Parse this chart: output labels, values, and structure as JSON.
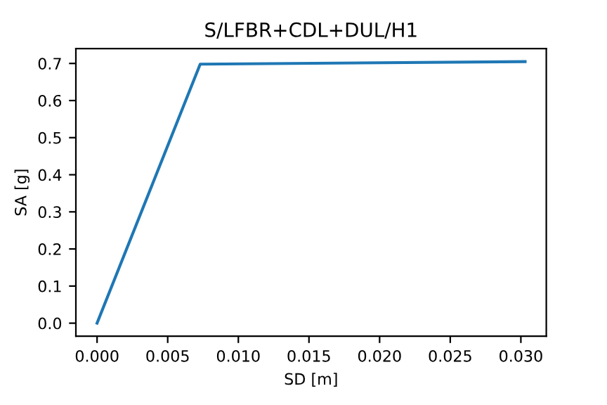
{
  "chart_data": {
    "type": "line",
    "title": "S/LFBR+CDL+DUL/H1",
    "xlabel": "SD [m]",
    "ylabel": "SA [g]",
    "x": [
      0.0,
      0.0073,
      0.0303
    ],
    "series": [
      {
        "color": "#1f77b4",
        "values": [
          0.0,
          0.698,
          0.705
        ]
      }
    ],
    "xlim": [
      -0.0015,
      0.0318
    ],
    "ylim": [
      -0.035,
      0.74
    ],
    "xticks": [
      {
        "value": 0,
        "label": "0.000"
      },
      {
        "value": 0.005,
        "label": "0.005"
      },
      {
        "value": 0.01,
        "label": "0.010"
      },
      {
        "value": 0.015,
        "label": "0.015"
      },
      {
        "value": 0.02,
        "label": "0.020"
      },
      {
        "value": 0.025,
        "label": "0.025"
      },
      {
        "value": 0.03,
        "label": "0.030"
      }
    ],
    "yticks": [
      {
        "value": 0,
        "label": "0.0"
      },
      {
        "value": 0.1,
        "label": "0.1"
      },
      {
        "value": 0.2,
        "label": "0.2"
      },
      {
        "value": 0.3,
        "label": "0.3"
      },
      {
        "value": 0.4,
        "label": "0.4"
      },
      {
        "value": 0.5,
        "label": "0.5"
      },
      {
        "value": 0.6,
        "label": "0.6"
      },
      {
        "value": 0.7,
        "label": "0.7"
      }
    ],
    "grid": false,
    "legend": false
  }
}
